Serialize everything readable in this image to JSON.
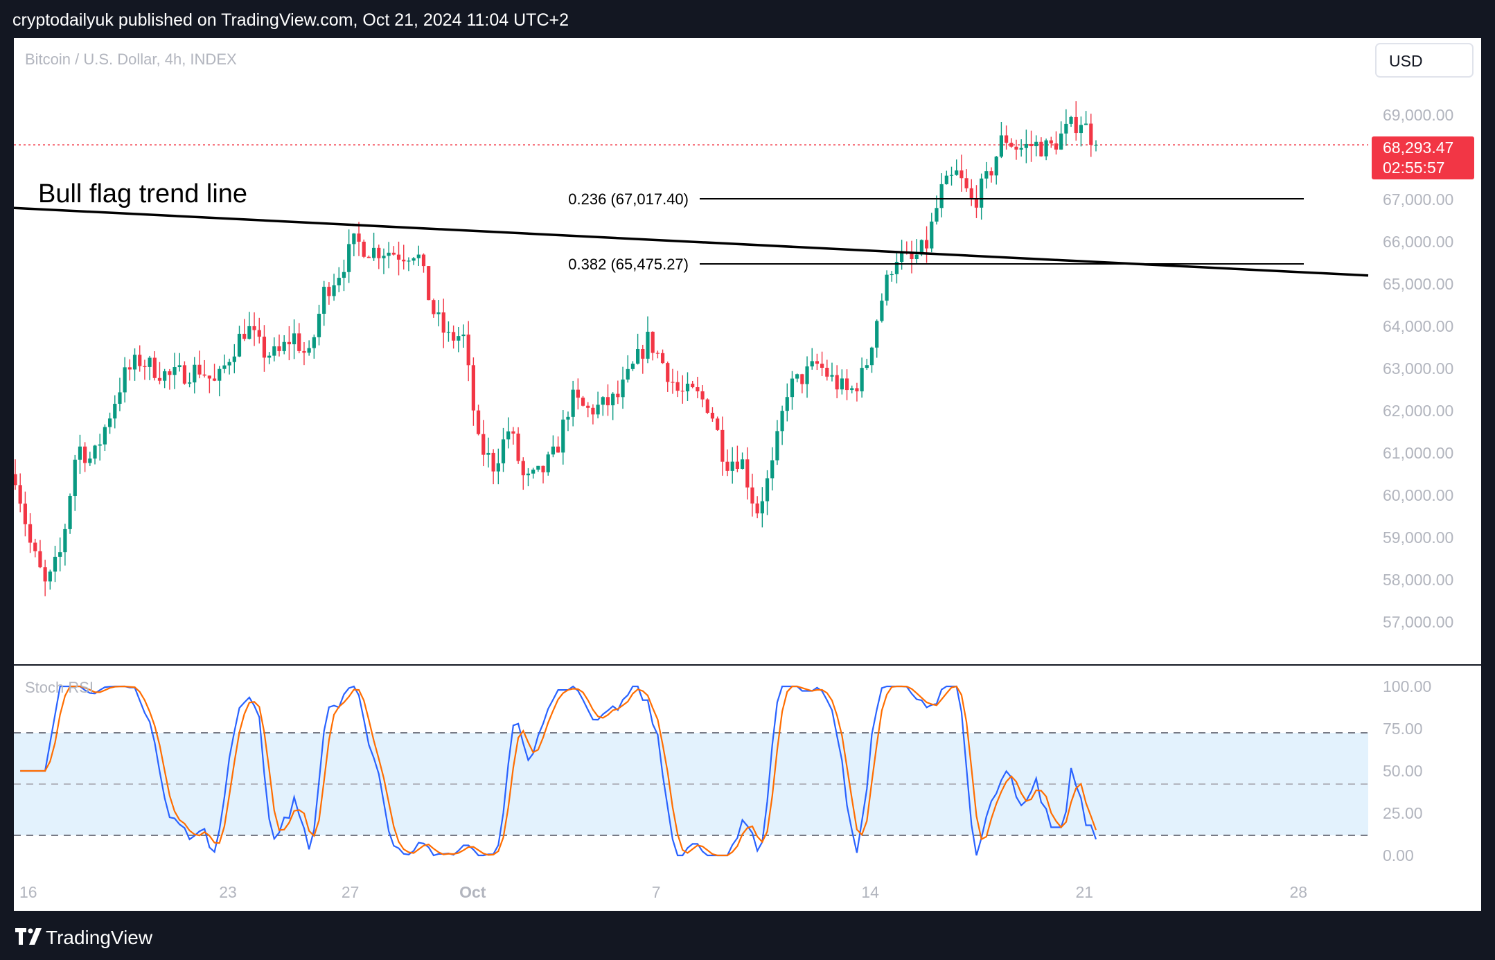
{
  "header": {
    "text": "cryptodailyuk published on TradingView.com, Oct 21, 2024 11:04 UTC+2"
  },
  "symbol_label": "Bitcoin / U.S. Dollar, 4h, INDEX",
  "currency_button": "USD",
  "price_badge": {
    "price": "68,293.47",
    "countdown": "02:55:57",
    "color": "#f23645"
  },
  "annotation": "Bull flag trend line",
  "footer": {
    "brand": "TradingView"
  },
  "colors": {
    "up": "#089981",
    "down": "#f23645",
    "stoch_k": "#2962ff",
    "stoch_d": "#ff6d00",
    "band_fill": "#e3f2fd"
  },
  "chart_data": [
    {
      "type": "candlestick",
      "title": "Bitcoin / U.S. Dollar, 4h, INDEX",
      "timeframe": "4h",
      "ylim": [
        56000,
        70000
      ],
      "y_ticks": [
        "69,000.00",
        "68,000.00",
        "67,000.00",
        "66,000.00",
        "65,000.00",
        "64,000.00",
        "63,000.00",
        "62,000.00",
        "61,000.00",
        "60,000.00",
        "59,000.00",
        "58,000.00",
        "57,000.00"
      ],
      "x_ticks": [
        "16",
        "23",
        "27",
        "Oct",
        "7",
        "14",
        "21",
        "28"
      ],
      "last_price": 68293.47,
      "fib_levels": [
        {
          "label": "0.236 (67,017.40)",
          "value": 67017.4
        },
        {
          "label": "0.382 (65,475.27)",
          "value": 65475.27
        }
      ],
      "trend_line": {
        "name": "Bull flag trend line",
        "from": {
          "date": "Sep 16",
          "price": 66800
        },
        "to": {
          "date": "Oct 28",
          "price": 65200
        }
      },
      "price_path": [
        [
          "Sep 16",
          60500
        ],
        [
          "Sep 16",
          58800
        ],
        [
          "Sep 17",
          57800
        ],
        [
          "Sep 17",
          58700
        ],
        [
          "Sep 18",
          61200
        ],
        [
          "Sep 18",
          60800
        ],
        [
          "Sep 19",
          61800
        ],
        [
          "Sep 19",
          62800
        ],
        [
          "Sep 20",
          63200
        ],
        [
          "Sep 20",
          63000
        ],
        [
          "Sep 21",
          62800
        ],
        [
          "Sep 21",
          62900
        ],
        [
          "Sep 22",
          63000
        ],
        [
          "Sep 22",
          62600
        ],
        [
          "Sep 23",
          63400
        ],
        [
          "Sep 23",
          64000
        ],
        [
          "Sep 24",
          63400
        ],
        [
          "Sep 24",
          63300
        ],
        [
          "Sep 25",
          63800
        ],
        [
          "Sep 25",
          63200
        ],
        [
          "Sep 26",
          64800
        ],
        [
          "Sep 26",
          65300
        ],
        [
          "Sep 27",
          66000
        ],
        [
          "Sep 27",
          65800
        ],
        [
          "Sep 28",
          65800
        ],
        [
          "Sep 28",
          65700
        ],
        [
          "Sep 29",
          65800
        ],
        [
          "Sep 29",
          64400
        ],
        [
          "Sep 30",
          63700
        ],
        [
          "Sep 30",
          63800
        ],
        [
          "Oct 1",
          61200
        ],
        [
          "Oct 1",
          60700
        ],
        [
          "Oct 2",
          61600
        ],
        [
          "Oct 2",
          60300
        ],
        [
          "Oct 3",
          60500
        ],
        [
          "Oct 3",
          61000
        ],
        [
          "Oct 4",
          62300
        ],
        [
          "Oct 4",
          62000
        ],
        [
          "Oct 5",
          62100
        ],
        [
          "Oct 5",
          62300
        ],
        [
          "Oct 6",
          63000
        ],
        [
          "Oct 6",
          63700
        ],
        [
          "Oct 7",
          63100
        ],
        [
          "Oct 7",
          62400
        ],
        [
          "Oct 8",
          62400
        ],
        [
          "Oct 8",
          62100
        ],
        [
          "Oct 9",
          60800
        ],
        [
          "Oct 9",
          60900
        ],
        [
          "Oct 10",
          59600
        ],
        [
          "Oct 10",
          60600
        ],
        [
          "Oct 11",
          62500
        ],
        [
          "Oct 11",
          62800
        ],
        [
          "Oct 12",
          63100
        ],
        [
          "Oct 12",
          62700
        ],
        [
          "Oct 13",
          62400
        ],
        [
          "Oct 13",
          62900
        ],
        [
          "Oct 14",
          64500
        ],
        [
          "Oct 14",
          65700
        ],
        [
          "Oct 15",
          65500
        ],
        [
          "Oct 15",
          65900
        ],
        [
          "Oct 16",
          67200
        ],
        [
          "Oct 16",
          67600
        ],
        [
          "Oct 17",
          66900
        ],
        [
          "Oct 17",
          67500
        ],
        [
          "Oct 18",
          68500
        ],
        [
          "Oct 18",
          68200
        ],
        [
          "Oct 19",
          68300
        ],
        [
          "Oct 19",
          68200
        ],
        [
          "Oct 20",
          68600
        ],
        [
          "Oct 20",
          68900
        ],
        [
          "Oct 21",
          68300
        ]
      ]
    },
    {
      "type": "line",
      "title": "Stoch RSI",
      "ylim": [
        -10,
        110
      ],
      "y_ticks": [
        "100.00",
        "75.00",
        "50.00",
        "25.00",
        "0.00"
      ],
      "band": [
        20,
        80
      ],
      "midline": 50,
      "series": [
        {
          "name": "%K",
          "color": "#2962ff",
          "values": []
        },
        {
          "name": "%D",
          "color": "#ff6d00",
          "values": []
        }
      ]
    }
  ]
}
